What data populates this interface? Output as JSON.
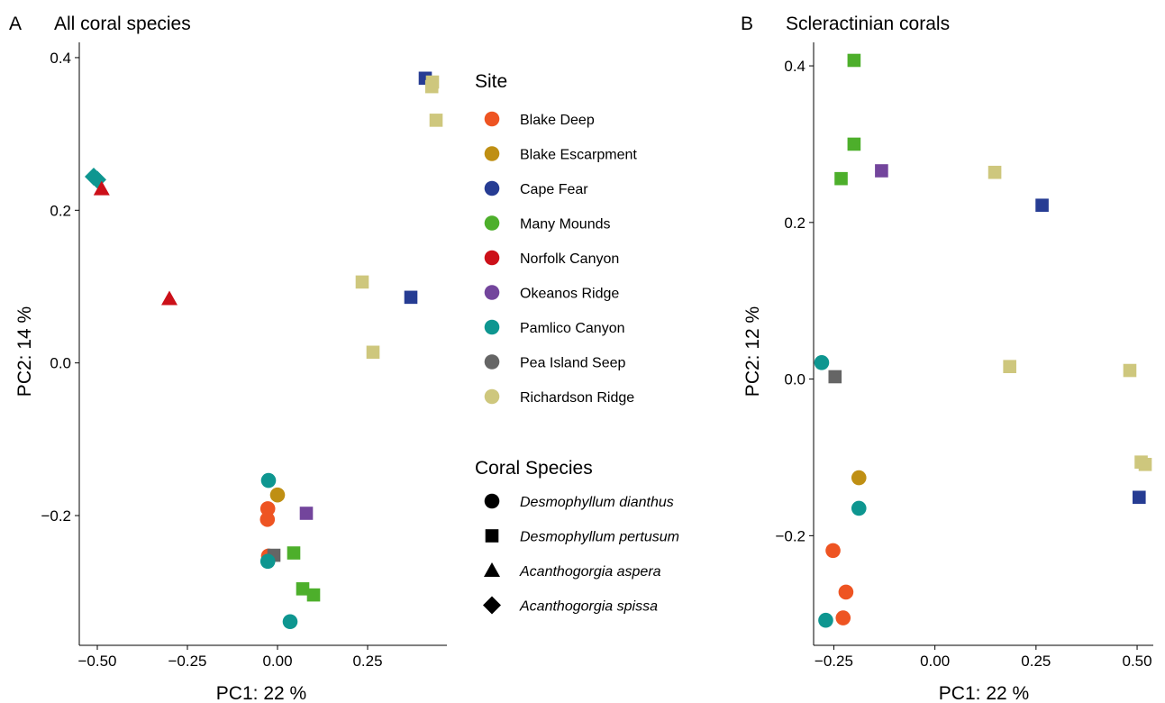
{
  "site_colors": {
    "Blake Deep": "#EE5422",
    "Blake Escarpment": "#BF8F13",
    "Cape Fear": "#263C93",
    "Many Mounds": "#4DAF2B",
    "Norfolk Canyon": "#CC1019",
    "Okeanos Ridge": "#73459C",
    "Pamlico Canyon": "#0E9690",
    "Pea Island Seep": "#656565",
    "Richardson Ridge": "#CEC77D"
  },
  "legend": {
    "site_title": "Site",
    "sites": [
      "Blake Deep",
      "Blake Escarpment",
      "Cape Fear",
      "Many Mounds",
      "Norfolk Canyon",
      "Okeanos Ridge",
      "Pamlico Canyon",
      "Pea Island Seep",
      "Richardson Ridge"
    ],
    "species_title": "Coral Species",
    "species": [
      {
        "label": "Desmophyllum dianthus",
        "shape": "circle"
      },
      {
        "label": "Desmophyllum pertusum",
        "shape": "square"
      },
      {
        "label": "Acanthogorgia aspera",
        "shape": "triangle"
      },
      {
        "label": "Acanthogorgia spissa",
        "shape": "diamond"
      }
    ]
  },
  "chart_data": [
    {
      "type": "scatter",
      "panel_letter": "A",
      "title": "All coral species",
      "xlabel": "PC1:  22 %",
      "ylabel": "PC2:  14 %",
      "xlim": [
        -0.55,
        0.47
      ],
      "ylim": [
        -0.37,
        0.42
      ],
      "xticks": [
        -0.5,
        -0.25,
        0.0,
        0.25
      ],
      "xtick_labels": [
        "−0.50",
        "−0.25",
        "0.00",
        "0.25"
      ],
      "yticks": [
        -0.2,
        0.0,
        0.2,
        0.4
      ],
      "ytick_labels": [
        "−0.2",
        "0.0",
        "0.2",
        "0.4"
      ],
      "grid": false,
      "points": [
        {
          "x": 0.41,
          "y": 0.373,
          "site": "Cape Fear",
          "shape": "square"
        },
        {
          "x": 0.37,
          "y": 0.086,
          "site": "Cape Fear",
          "shape": "square"
        },
        {
          "x": 0.43,
          "y": 0.368,
          "site": "Richardson Ridge",
          "shape": "square"
        },
        {
          "x": 0.428,
          "y": 0.362,
          "site": "Richardson Ridge",
          "shape": "square"
        },
        {
          "x": 0.44,
          "y": 0.318,
          "site": "Richardson Ridge",
          "shape": "square"
        },
        {
          "x": 0.235,
          "y": 0.106,
          "site": "Richardson Ridge",
          "shape": "square"
        },
        {
          "x": 0.265,
          "y": 0.014,
          "site": "Richardson Ridge",
          "shape": "square"
        },
        {
          "x": -0.51,
          "y": 0.244,
          "site": "Pamlico Canyon",
          "shape": "diamond"
        },
        {
          "x": -0.5,
          "y": 0.24,
          "site": "Pamlico Canyon",
          "shape": "diamond"
        },
        {
          "x": -0.488,
          "y": 0.228,
          "site": "Norfolk Canyon",
          "shape": "triangle"
        },
        {
          "x": -0.3,
          "y": 0.084,
          "site": "Norfolk Canyon",
          "shape": "triangle"
        },
        {
          "x": -0.025,
          "y": -0.154,
          "site": "Pamlico Canyon",
          "shape": "circle"
        },
        {
          "x": 0.0,
          "y": -0.173,
          "site": "Blake Escarpment",
          "shape": "circle"
        },
        {
          "x": -0.027,
          "y": -0.191,
          "site": "Blake Deep",
          "shape": "circle"
        },
        {
          "x": -0.028,
          "y": -0.205,
          "site": "Blake Deep",
          "shape": "circle"
        },
        {
          "x": 0.08,
          "y": -0.197,
          "site": "Okeanos Ridge",
          "shape": "square"
        },
        {
          "x": -0.025,
          "y": -0.253,
          "site": "Blake Deep",
          "shape": "circle"
        },
        {
          "x": -0.01,
          "y": -0.252,
          "site": "Pea Island Seep",
          "shape": "square"
        },
        {
          "x": 0.045,
          "y": -0.249,
          "site": "Many Mounds",
          "shape": "square"
        },
        {
          "x": -0.027,
          "y": -0.26,
          "site": "Pamlico Canyon",
          "shape": "circle"
        },
        {
          "x": 0.07,
          "y": -0.296,
          "site": "Many Mounds",
          "shape": "square"
        },
        {
          "x": 0.1,
          "y": -0.304,
          "site": "Many Mounds",
          "shape": "square"
        },
        {
          "x": 0.035,
          "y": -0.339,
          "site": "Pamlico Canyon",
          "shape": "circle"
        }
      ]
    },
    {
      "type": "scatter",
      "panel_letter": "B",
      "title": "Scleractinian corals",
      "xlabel": "PC1:  22 %",
      "ylabel": "PC2:  12 %",
      "xlim": [
        -0.3,
        0.54
      ],
      "ylim": [
        -0.34,
        0.43
      ],
      "xticks": [
        -0.25,
        0.0,
        0.25,
        0.5
      ],
      "xtick_labels": [
        "−0.25",
        "0.00",
        "0.25",
        "0.50"
      ],
      "yticks": [
        -0.2,
        0.0,
        0.2,
        0.4
      ],
      "ytick_labels": [
        "−0.2",
        "0.0",
        "0.2",
        "0.4"
      ],
      "grid": false,
      "points": [
        {
          "x": -0.2,
          "y": 0.407,
          "site": "Many Mounds",
          "shape": "square"
        },
        {
          "x": -0.2,
          "y": 0.3,
          "site": "Many Mounds",
          "shape": "square"
        },
        {
          "x": -0.232,
          "y": 0.256,
          "site": "Many Mounds",
          "shape": "square"
        },
        {
          "x": -0.132,
          "y": 0.266,
          "site": "Okeanos Ridge",
          "shape": "square"
        },
        {
          "x": 0.148,
          "y": 0.264,
          "site": "Richardson Ridge",
          "shape": "square"
        },
        {
          "x": 0.265,
          "y": 0.222,
          "site": "Cape Fear",
          "shape": "square"
        },
        {
          "x": -0.28,
          "y": 0.021,
          "site": "Pamlico Canyon",
          "shape": "circle"
        },
        {
          "x": -0.247,
          "y": 0.003,
          "site": "Pea Island Seep",
          "shape": "square"
        },
        {
          "x": 0.185,
          "y": 0.016,
          "site": "Richardson Ridge",
          "shape": "square"
        },
        {
          "x": 0.482,
          "y": 0.011,
          "site": "Richardson Ridge",
          "shape": "square"
        },
        {
          "x": 0.51,
          "y": -0.106,
          "site": "Richardson Ridge",
          "shape": "square"
        },
        {
          "x": 0.52,
          "y": -0.109,
          "site": "Richardson Ridge",
          "shape": "square"
        },
        {
          "x": 0.505,
          "y": -0.151,
          "site": "Cape Fear",
          "shape": "square"
        },
        {
          "x": -0.188,
          "y": -0.126,
          "site": "Blake Escarpment",
          "shape": "circle"
        },
        {
          "x": -0.188,
          "y": -0.165,
          "site": "Pamlico Canyon",
          "shape": "circle"
        },
        {
          "x": -0.252,
          "y": -0.219,
          "site": "Blake Deep",
          "shape": "circle"
        },
        {
          "x": -0.22,
          "y": -0.272,
          "site": "Blake Deep",
          "shape": "circle"
        },
        {
          "x": -0.227,
          "y": -0.305,
          "site": "Blake Deep",
          "shape": "circle"
        },
        {
          "x": -0.27,
          "y": -0.308,
          "site": "Pamlico Canyon",
          "shape": "circle"
        }
      ]
    }
  ]
}
